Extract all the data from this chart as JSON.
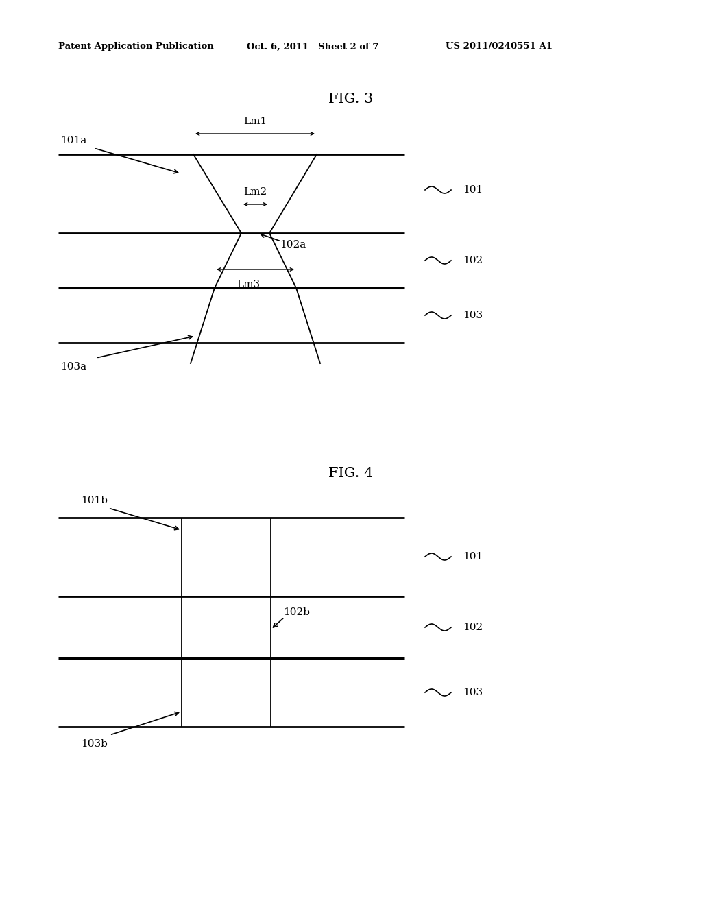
{
  "background_color": "#ffffff",
  "header_left": "Patent Application Publication",
  "header_mid": "Oct. 6, 2011   Sheet 2 of 7",
  "header_right": "US 2011/0240551 A1",
  "fig3_title": "FIG. 3",
  "fig4_title": "FIG. 4",
  "line_color": "#000000",
  "text_color": "#000000"
}
